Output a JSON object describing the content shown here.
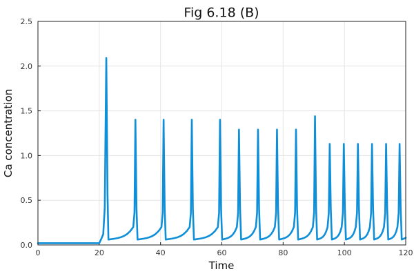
{
  "chart_data": {
    "type": "line",
    "title": "Fig 6.18 (B)",
    "xlabel": "Time",
    "ylabel": "Ca concentration",
    "xlim": [
      0,
      120
    ],
    "ylim": [
      0,
      2.5
    ],
    "xticks": [
      0,
      20,
      40,
      60,
      80,
      100,
      120
    ],
    "yticks": [
      0.0,
      0.5,
      1.0,
      1.5,
      2.0,
      2.5
    ],
    "xtick_labels": [
      "0",
      "20",
      "40",
      "60",
      "80",
      "100",
      "120"
    ],
    "ytick_labels": [
      "0.0",
      "0.5",
      "1.0",
      "1.5",
      "2.0",
      "2.5"
    ],
    "grid": true,
    "legend": "none",
    "series_color": "#0f8fd8",
    "baseline": 0.02,
    "onset_time": 20,
    "trough": 0.06,
    "spikes": [
      {
        "t": 22.3,
        "peak": 2.09
      },
      {
        "t": 31.8,
        "peak": 1.4
      },
      {
        "t": 41.0,
        "peak": 1.4
      },
      {
        "t": 50.2,
        "peak": 1.4
      },
      {
        "t": 59.4,
        "peak": 1.4
      },
      {
        "t": 65.6,
        "peak": 1.29
      },
      {
        "t": 71.8,
        "peak": 1.29
      },
      {
        "t": 78.0,
        "peak": 1.29
      },
      {
        "t": 84.2,
        "peak": 1.29
      },
      {
        "t": 90.4,
        "peak": 1.44
      },
      {
        "t": 95.2,
        "peak": 1.13
      },
      {
        "t": 99.8,
        "peak": 1.13
      },
      {
        "t": 104.4,
        "peak": 1.13
      },
      {
        "t": 109.0,
        "peak": 1.13
      },
      {
        "t": 113.6,
        "peak": 1.13
      },
      {
        "t": 118.0,
        "peak": 1.13
      }
    ],
    "end_value": 0.08
  }
}
